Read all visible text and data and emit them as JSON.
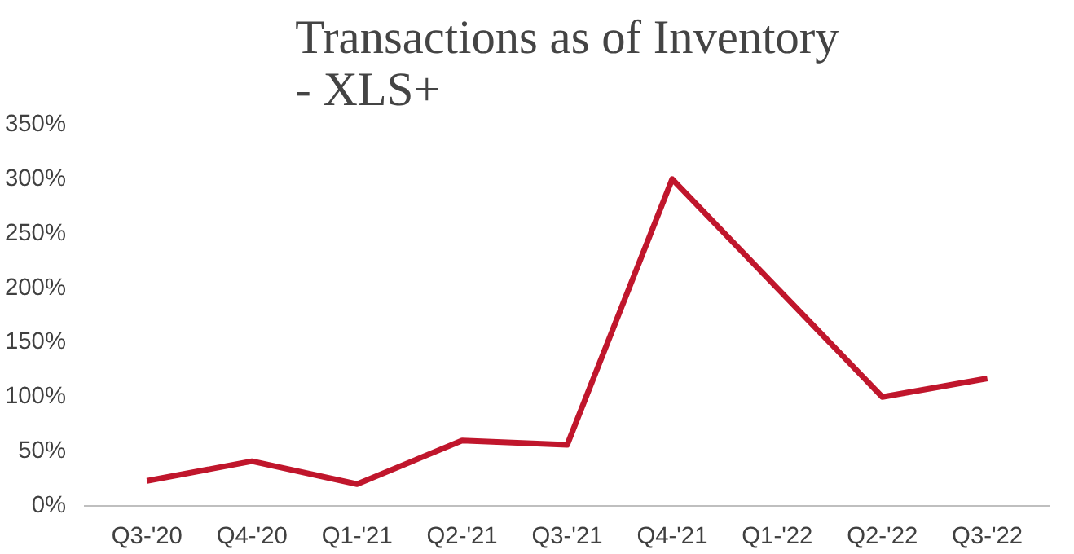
{
  "chart_data": {
    "type": "line",
    "title": "Transactions as of Inventory\n- XLS+",
    "categories": [
      "Q3-'20",
      "Q4-'20",
      "Q1-'21",
      "Q2-'21",
      "Q3-'21",
      "Q4-'21",
      "Q1-'22",
      "Q2-'22",
      "Q3-'22"
    ],
    "series": [
      {
        "color": "#c0162c",
        "values": [
          23,
          41,
          20,
          60,
          56,
          300,
          200,
          100,
          117
        ]
      }
    ],
    "ylim": [
      0,
      350
    ],
    "yticks": [
      {
        "value": 0,
        "label": "0%"
      },
      {
        "value": 50,
        "label": "50%"
      },
      {
        "value": 100,
        "label": "100%"
      },
      {
        "value": 150,
        "label": "150%"
      },
      {
        "value": 200,
        "label": "200%"
      },
      {
        "value": 250,
        "label": "250%"
      },
      {
        "value": 300,
        "label": "300%"
      },
      {
        "value": 350,
        "label": "350%"
      }
    ],
    "grid": false,
    "marker": "none",
    "line_style": "solid"
  }
}
